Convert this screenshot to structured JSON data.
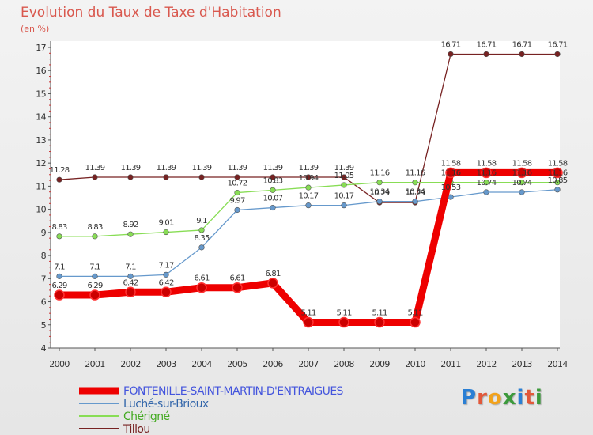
{
  "title": "Evolution du Taux de Taxe d'Habitation",
  "subtitle": "(en %)",
  "logo": {
    "text": "Proxiti",
    "colors": [
      "#2a7fd4",
      "#e2583a",
      "#f2a21b",
      "#3c9a3c",
      "#2a7fd4",
      "#e2583a",
      "#3c9a3c"
    ]
  },
  "chart_data": {
    "type": "line",
    "title": "Evolution du Taux de Taxe d'Habitation",
    "ylabel": "(en %)",
    "xlabel": "",
    "ylim": [
      4,
      17
    ],
    "yticks": [
      "4",
      "5",
      "6",
      "7",
      "8",
      "9",
      "10",
      "11",
      "12",
      "13",
      "14",
      "15",
      "16",
      "17"
    ],
    "x": [
      "2000",
      "2001",
      "2002",
      "2003",
      "2004",
      "2005",
      "2006",
      "2007",
      "2008",
      "2009",
      "2010",
      "2011",
      "2012",
      "2013",
      "2014"
    ],
    "legend_position": "bottom",
    "grid": false,
    "series": [
      {
        "name": "FONTENILLE-SAINT-MARTIN-D'ENTRAIGUES",
        "color": "#ee0000",
        "labelColor": "#4455dd",
        "values": [
          6.29,
          6.29,
          6.42,
          6.42,
          6.61,
          6.61,
          6.81,
          5.11,
          5.11,
          5.11,
          5.11,
          11.58,
          11.58,
          11.58,
          11.58
        ],
        "labels": [
          "6.29",
          "6.29",
          "6.42",
          "6.42",
          "6.61",
          "6.61",
          "6.81",
          "5.11",
          "5.11",
          "5.11",
          "5.11",
          "11.58",
          "11.58",
          "11.58",
          "11.58"
        ]
      },
      {
        "name": "Luché-sur-Brioux",
        "color": "#6699cc",
        "labelColor": "#3366aa",
        "values": [
          7.1,
          7.1,
          7.1,
          7.17,
          8.35,
          9.97,
          10.07,
          10.17,
          10.17,
          10.34,
          10.34,
          10.53,
          10.74,
          10.74,
          10.85
        ],
        "labels": [
          "7.1",
          "7.1",
          "7.1",
          "7.17",
          "8.35",
          "9.97",
          "10.07",
          "10.17",
          "10.17",
          "10.34",
          "10.34",
          "10.53",
          "10.74",
          "10.74",
          "10.85"
        ]
      },
      {
        "name": "Chérigné",
        "color": "#88dd55",
        "labelColor": "#44aa22",
        "values": [
          8.83,
          8.83,
          8.92,
          9.01,
          9.1,
          10.72,
          10.83,
          10.94,
          11.05,
          11.16,
          11.16,
          11.16,
          11.16,
          11.16,
          11.16
        ],
        "labels": [
          "8.83",
          "8.83",
          "8.92",
          "9.01",
          "9.1",
          "10.72",
          "10.83",
          "10.94",
          "11.05",
          "11.16",
          "11.16",
          "11.16",
          "11.16",
          "11.16",
          "11.16"
        ]
      },
      {
        "name": "Tillou",
        "color": "#772222",
        "labelColor": "#772222",
        "values": [
          11.28,
          11.39,
          11.39,
          11.39,
          11.39,
          11.39,
          11.39,
          11.39,
          11.39,
          10.29,
          10.29,
          16.71,
          16.71,
          16.71,
          16.71
        ],
        "labels": [
          "11.28",
          "11.39",
          "11.39",
          "11.39",
          "11.39",
          "11.39",
          "11.39",
          "11.39",
          "11.39",
          "10.29",
          "10.29",
          "16.71",
          "16.71",
          "16.71",
          "16.71"
        ]
      }
    ]
  }
}
